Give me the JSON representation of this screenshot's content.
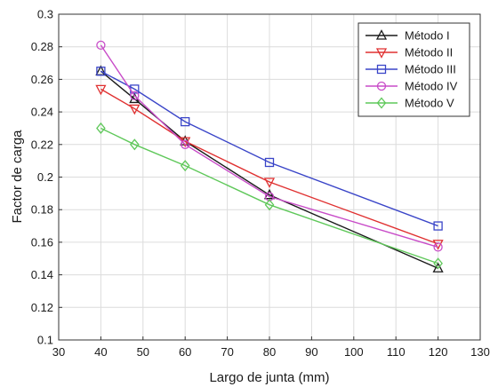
{
  "chart_data": {
    "type": "line",
    "xlabel": "Largo de junta (mm)",
    "ylabel": "Factor de carga",
    "xlim": [
      30,
      130
    ],
    "ylim": [
      0.1,
      0.3
    ],
    "x_ticks": [
      "30",
      "40",
      "50",
      "60",
      "70",
      "80",
      "90",
      "100",
      "110",
      "120",
      "130"
    ],
    "y_ticks": [
      "0.1",
      "0.12",
      "0.14",
      "0.16",
      "0.18",
      "0.2",
      "0.22",
      "0.24",
      "0.26",
      "0.28",
      "0.3"
    ],
    "grid": true,
    "legend_position": "top-right",
    "series": [
      {
        "name": "Método I",
        "color": "#1a1a1a",
        "marker": "triangle-up-icon",
        "x": [
          40,
          48,
          60,
          80,
          120
        ],
        "y": [
          0.265,
          0.248,
          0.222,
          0.189,
          0.144
        ]
      },
      {
        "name": "Método II",
        "color": "#e03030",
        "marker": "triangle-down-icon",
        "x": [
          40,
          48,
          60,
          80,
          120
        ],
        "y": [
          0.254,
          0.242,
          0.222,
          0.197,
          0.159
        ]
      },
      {
        "name": "Método III",
        "color": "#3a45c8",
        "marker": "square-icon",
        "x": [
          40,
          48,
          60,
          80,
          120
        ],
        "y": [
          0.265,
          0.254,
          0.234,
          0.209,
          0.17
        ]
      },
      {
        "name": "Método IV",
        "color": "#c84bc8",
        "marker": "circle-icon",
        "x": [
          40,
          48,
          60,
          80,
          120
        ],
        "y": [
          0.281,
          0.25,
          0.22,
          0.188,
          0.157
        ]
      },
      {
        "name": "Método V",
        "color": "#5fc85a",
        "marker": "diamond-icon",
        "x": [
          40,
          48,
          60,
          80,
          120
        ],
        "y": [
          0.23,
          0.22,
          0.207,
          0.183,
          0.147
        ]
      }
    ]
  }
}
